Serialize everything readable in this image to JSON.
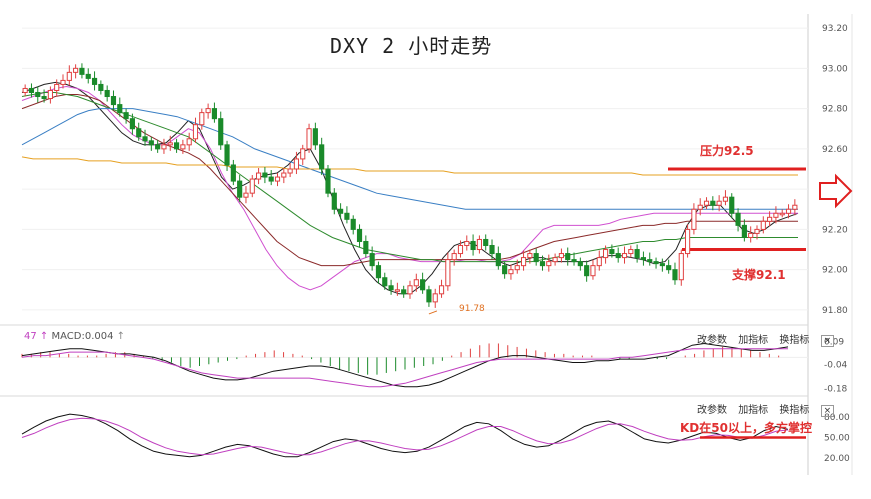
{
  "title": "DXY 2 小时走势",
  "price_axis": {
    "ticks": [
      "93.20",
      "93.00",
      "92.80",
      "92.60",
      "92.40",
      "92.20",
      "92.00",
      "91.80"
    ]
  },
  "macd_axis": {
    "ticks": [
      "0.09",
      "-0.04",
      "-0.18"
    ]
  },
  "kd_axis": {
    "ticks": [
      "80.00",
      "50.00",
      "20.00"
    ]
  },
  "macd_label": {
    "prefix": "47",
    "text": "MACD:0.004"
  },
  "controls": {
    "change_params": "改参数",
    "add_indicator": "加指标",
    "switch_indicator": "换指标",
    "close": "×"
  },
  "annotations": {
    "resistance": "压力92.5",
    "support": "支撑92.1",
    "low": "91.78",
    "kd_note": "KD在50以上，多方掌控"
  },
  "colors": {
    "up": "#e04040",
    "down": "#1a8a2a",
    "level_line": "#e02020",
    "arrow": "#e02020"
  },
  "chart_data": {
    "type": "candlestick",
    "title": "DXY 2 小时走势",
    "ylim": [
      91.75,
      93.25
    ],
    "levels": [
      {
        "name": "压力92.5",
        "value": 92.5
      },
      {
        "name": "支撑92.1",
        "value": 92.1
      }
    ],
    "low_marker": 91.78,
    "close": [
      92.9,
      92.88,
      92.86,
      92.85,
      92.89,
      92.92,
      92.94,
      92.98,
      93.0,
      92.97,
      92.95,
      92.92,
      92.89,
      92.86,
      92.82,
      92.78,
      92.75,
      92.7,
      92.66,
      92.64,
      92.62,
      92.6,
      92.62,
      92.63,
      92.6,
      92.62,
      92.65,
      92.72,
      92.78,
      92.8,
      92.75,
      92.62,
      92.52,
      92.44,
      92.36,
      92.38,
      92.45,
      92.48,
      92.46,
      92.44,
      92.46,
      92.48,
      92.5,
      92.55,
      92.6,
      92.7,
      92.62,
      92.5,
      92.38,
      92.3,
      92.28,
      92.25,
      92.2,
      92.14,
      92.08,
      92.02,
      91.96,
      91.92,
      91.9,
      91.9,
      91.88,
      91.92,
      91.95,
      91.9,
      91.84,
      91.88,
      91.92,
      92.05,
      92.08,
      92.12,
      92.14,
      92.1,
      92.15,
      92.12,
      92.08,
      92.02,
      91.98,
      92.0,
      92.02,
      92.06,
      92.08,
      92.04,
      92.02,
      92.04,
      92.06,
      92.08,
      92.05,
      92.04,
      92.02,
      91.97,
      92.02,
      92.06,
      92.1,
      92.08,
      92.06,
      92.08,
      92.1,
      92.06,
      92.05,
      92.04,
      92.03,
      92.02,
      92.0,
      91.95,
      92.08,
      92.2,
      92.3,
      92.32,
      92.34,
      92.32,
      92.34,
      92.36,
      92.28,
      92.22,
      92.16,
      92.18,
      92.2,
      92.24,
      92.26,
      92.28,
      92.28,
      92.3,
      92.32
    ],
    "ma_series": [
      {
        "color": "#222222",
        "values": [
          92.88,
          92.9,
          92.92,
          92.93,
          92.92,
          92.9,
          92.86,
          92.8,
          92.74,
          92.68,
          92.64,
          92.62,
          92.62,
          92.63,
          92.68,
          92.74,
          92.7,
          92.58,
          92.46,
          92.4,
          92.42,
          92.45,
          92.47,
          92.48,
          92.52,
          92.58,
          92.6,
          92.5,
          92.36,
          92.22,
          92.1,
          92.0,
          91.94,
          91.9,
          91.88,
          91.88,
          91.92,
          91.98,
          92.06,
          92.12,
          92.14,
          92.12,
          92.08,
          92.04,
          92.02,
          92.04,
          92.06,
          92.06,
          92.04,
          92.04,
          92.04,
          92.04,
          92.06,
          92.07,
          92.07,
          92.06,
          92.05,
          92.03,
          92.04,
          92.1,
          92.22,
          92.3,
          92.32,
          92.32,
          92.26,
          92.2,
          92.18,
          92.2,
          92.24,
          92.26,
          92.28
        ]
      },
      {
        "color": "#d050d0",
        "values": [
          92.84,
          92.86,
          92.88,
          92.9,
          92.91,
          92.9,
          92.88,
          92.84,
          92.78,
          92.72,
          92.67,
          92.64,
          92.62,
          92.62,
          92.66,
          92.7,
          92.68,
          92.6,
          92.48,
          92.38,
          92.3,
          92.2,
          92.1,
          92.02,
          91.96,
          91.92,
          91.9,
          91.92,
          91.96,
          92.0,
          92.04,
          92.06,
          92.08,
          92.08,
          92.06,
          92.05,
          92.04,
          92.04,
          92.04,
          92.04,
          92.05,
          92.05,
          92.04,
          92.04,
          92.05,
          92.08,
          92.14,
          92.2,
          92.22,
          92.22,
          92.22,
          92.22,
          92.22,
          92.23,
          92.25,
          92.26,
          92.27,
          92.28,
          92.28,
          92.28,
          92.28,
          92.28,
          92.28,
          92.28,
          92.28,
          92.28,
          92.28,
          92.28,
          92.28,
          92.28,
          92.28
        ]
      },
      {
        "color": "#8b2a2a",
        "values": [
          92.8,
          92.82,
          92.84,
          92.86,
          92.87,
          92.87,
          92.86,
          92.84,
          92.8,
          92.76,
          92.72,
          92.68,
          92.65,
          92.62,
          92.6,
          92.58,
          92.55,
          92.5,
          92.44,
          92.38,
          92.32,
          92.26,
          92.2,
          92.14,
          92.1,
          92.06,
          92.04,
          92.02,
          92.02,
          92.02,
          92.03,
          92.04,
          92.05,
          92.05,
          92.05,
          92.05,
          92.05,
          92.05,
          92.05,
          92.05,
          92.05,
          92.05,
          92.05,
          92.05,
          92.06,
          92.08,
          92.1,
          92.12,
          92.14,
          92.15,
          92.16,
          92.17,
          92.18,
          92.19,
          92.2,
          92.21,
          92.22,
          92.22,
          92.23,
          92.23,
          92.24,
          92.24,
          92.24,
          92.24,
          92.24,
          92.24,
          92.24,
          92.24,
          92.24,
          92.24,
          92.24
        ]
      },
      {
        "color": "#2e8b2e",
        "values": [
          92.86,
          92.87,
          92.88,
          92.88,
          92.87,
          92.86,
          92.84,
          92.82,
          92.8,
          92.78,
          92.76,
          92.74,
          92.72,
          92.7,
          92.68,
          92.66,
          92.62,
          92.58,
          92.54,
          92.5,
          92.46,
          92.42,
          92.38,
          92.34,
          92.3,
          92.26,
          92.22,
          92.19,
          92.16,
          92.14,
          92.12,
          92.1,
          92.09,
          92.08,
          92.07,
          92.06,
          92.05,
          92.05,
          92.04,
          92.04,
          92.04,
          92.04,
          92.04,
          92.04,
          92.04,
          92.04,
          92.04,
          92.05,
          92.06,
          92.07,
          92.08,
          92.09,
          92.1,
          92.11,
          92.12,
          92.13,
          92.14,
          92.14,
          92.15,
          92.15,
          92.16,
          92.16,
          92.16,
          92.16,
          92.16,
          92.16,
          92.16,
          92.16,
          92.16,
          92.16,
          92.16
        ]
      },
      {
        "color": "#3a7fc4",
        "values": [
          92.62,
          92.65,
          92.68,
          92.71,
          92.74,
          92.77,
          92.79,
          92.8,
          92.8,
          92.8,
          92.8,
          92.79,
          92.78,
          92.77,
          92.76,
          92.74,
          92.72,
          92.7,
          92.68,
          92.66,
          92.63,
          92.6,
          92.58,
          92.56,
          92.54,
          92.52,
          92.5,
          92.48,
          92.46,
          92.44,
          92.42,
          92.4,
          92.38,
          92.37,
          92.36,
          92.35,
          92.34,
          92.33,
          92.32,
          92.31,
          92.3,
          92.3,
          92.3,
          92.3,
          92.3,
          92.3,
          92.3,
          92.3,
          92.3,
          92.3,
          92.3,
          92.3,
          92.3,
          92.3,
          92.3,
          92.3,
          92.3,
          92.3,
          92.3,
          92.3,
          92.3,
          92.3,
          92.3,
          92.3,
          92.3,
          92.3,
          92.3,
          92.3,
          92.3,
          92.3,
          92.3
        ]
      },
      {
        "color": "#e6a020",
        "values": [
          92.56,
          92.55,
          92.55,
          92.55,
          92.55,
          92.55,
          92.54,
          92.54,
          92.54,
          92.53,
          92.53,
          92.53,
          92.53,
          92.53,
          92.52,
          92.52,
          92.52,
          92.52,
          92.52,
          92.51,
          92.51,
          92.51,
          92.51,
          92.51,
          92.5,
          92.5,
          92.5,
          92.5,
          92.5,
          92.5,
          92.5,
          92.49,
          92.49,
          92.49,
          92.49,
          92.49,
          92.49,
          92.49,
          92.49,
          92.48,
          92.48,
          92.48,
          92.48,
          92.48,
          92.48,
          92.48,
          92.48,
          92.48,
          92.48,
          92.48,
          92.48,
          92.48,
          92.48,
          92.48,
          92.48,
          92.48,
          92.47,
          92.47,
          92.47,
          92.47,
          92.47,
          92.47,
          92.47,
          92.47,
          92.47,
          92.47,
          92.47,
          92.47,
          92.47,
          92.47,
          92.47
        ]
      }
    ],
    "macd": {
      "ylim": [
        -0.2,
        0.1
      ],
      "hist": [
        0.02,
        0.02,
        0.03,
        0.03,
        0.02,
        0.02,
        0.01,
        0.01,
        0.01,
        0.02,
        0.03,
        0.03,
        0.02,
        0.01,
        -0.01,
        -0.02,
        -0.03,
        -0.05,
        -0.06,
        -0.05,
        -0.04,
        -0.03,
        -0.02,
        -0.01,
        0.01,
        0.02,
        0.03,
        0.04,
        0.03,
        0.02,
        0.01,
        -0.01,
        -0.03,
        -0.05,
        -0.07,
        -0.08,
        -0.09,
        -0.1,
        -0.1,
        -0.09,
        -0.08,
        -0.07,
        -0.06,
        -0.05,
        -0.04,
        -0.02,
        0.01,
        0.03,
        0.05,
        0.07,
        0.08,
        0.08,
        0.07,
        0.06,
        0.05,
        0.04,
        0.03,
        0.02,
        0.02,
        0.01,
        0.01,
        0.01,
        0.0,
        0.0,
        -0.01,
        -0.01,
        0.0,
        0.0,
        -0.01,
        -0.01,
        0.0,
        0.01,
        0.02,
        0.04,
        0.05,
        0.06,
        0.06,
        0.05,
        0.04,
        0.03,
        0.02,
        0.01,
        0.0
      ],
      "dif": [
        0.01,
        0.02,
        0.03,
        0.04,
        0.05,
        0.05,
        0.04,
        0.03,
        0.02,
        0.02,
        0.01,
        0.0,
        -0.02,
        -0.05,
        -0.08,
        -0.1,
        -0.12,
        -0.13,
        -0.13,
        -0.12,
        -0.1,
        -0.08,
        -0.07,
        -0.06,
        -0.05,
        -0.05,
        -0.06,
        -0.08,
        -0.1,
        -0.12,
        -0.14,
        -0.16,
        -0.17,
        -0.17,
        -0.16,
        -0.14,
        -0.11,
        -0.08,
        -0.05,
        -0.02,
        0.0,
        0.01,
        0.01,
        0.0,
        -0.01,
        -0.02,
        -0.03,
        -0.03,
        -0.02,
        -0.02,
        -0.01,
        -0.01,
        -0.01,
        0.0,
        0.01,
        0.04,
        0.07,
        0.08,
        0.07,
        0.06,
        0.05,
        0.04,
        0.04,
        0.05,
        0.06
      ],
      "dea": [
        0.0,
        0.01,
        0.01,
        0.02,
        0.03,
        0.03,
        0.03,
        0.03,
        0.02,
        0.01,
        0.0,
        -0.01,
        -0.03,
        -0.05,
        -0.07,
        -0.09,
        -0.1,
        -0.11,
        -0.12,
        -0.12,
        -0.12,
        -0.12,
        -0.12,
        -0.12,
        -0.12,
        -0.13,
        -0.14,
        -0.15,
        -0.16,
        -0.17,
        -0.17,
        -0.16,
        -0.15,
        -0.13,
        -0.11,
        -0.09,
        -0.07,
        -0.05,
        -0.03,
        -0.02,
        -0.01,
        -0.01,
        -0.01,
        -0.01,
        -0.01,
        -0.01,
        -0.01,
        -0.01,
        -0.01,
        -0.01,
        0.0,
        0.0,
        0.01,
        0.02,
        0.03,
        0.04,
        0.05,
        0.05,
        0.05,
        0.05,
        0.05,
        0.05,
        0.05,
        0.05,
        0.05
      ]
    },
    "kd": {
      "ylim": [
        10,
        90
      ],
      "k": [
        55,
        65,
        74,
        80,
        84,
        82,
        78,
        70,
        60,
        48,
        38,
        30,
        26,
        24,
        22,
        24,
        30,
        36,
        40,
        38,
        32,
        26,
        22,
        22,
        28,
        36,
        44,
        48,
        46,
        40,
        34,
        30,
        28,
        30,
        36,
        46,
        56,
        66,
        72,
        70,
        60,
        48,
        40,
        36,
        38,
        46,
        56,
        66,
        72,
        74,
        68,
        58,
        48,
        44,
        42,
        46,
        52,
        58,
        56,
        50,
        46,
        50,
        60,
        66,
        62
      ],
      "d": [
        50,
        56,
        64,
        71,
        76,
        78,
        77,
        74,
        68,
        60,
        50,
        42,
        35,
        30,
        27,
        25,
        26,
        30,
        34,
        37,
        36,
        32,
        28,
        25,
        25,
        29,
        35,
        41,
        45,
        45,
        42,
        38,
        34,
        32,
        33,
        38,
        45,
        53,
        61,
        66,
        66,
        60,
        52,
        45,
        41,
        42,
        47,
        55,
        63,
        69,
        70,
        66,
        59,
        53,
        48,
        46,
        47,
        51,
        54,
        53,
        50,
        49,
        53,
        59,
        61
      ]
    }
  }
}
